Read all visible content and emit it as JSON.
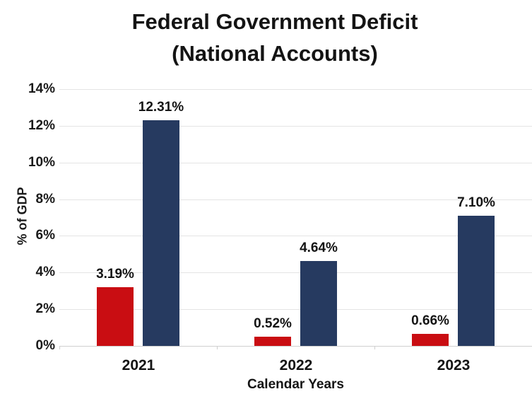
{
  "page": {
    "background": "#FFFFFF",
    "text_color": "#141414"
  },
  "chart_data": {
    "type": "bar",
    "title": "Federal Government Deficit",
    "subtitle": "(National Accounts)",
    "categories": [
      "2021",
      "2022",
      "2023"
    ],
    "series": [
      {
        "name": "red-series",
        "color": "#C90D12",
        "values": [
          3.19,
          0.52,
          0.66
        ],
        "data_labels": [
          "3.19%",
          "0.52%",
          "0.66%"
        ]
      },
      {
        "name": "navy-series",
        "color": "#263A60",
        "values": [
          12.31,
          4.64,
          7.1
        ],
        "data_labels": [
          "12.31%",
          "4.64%",
          "7.10%"
        ]
      }
    ],
    "xlabel": "Calendar Years",
    "ylabel": "% of GDP",
    "ylim": [
      0,
      14
    ],
    "yticks": [
      0,
      2,
      4,
      6,
      8,
      10,
      12,
      14
    ],
    "ytick_labels": [
      "0%",
      "2%",
      "4%",
      "6%",
      "8%",
      "10%",
      "12%",
      "14%"
    ],
    "grid": true,
    "grid_color": "#E4E4E4",
    "axis_line_color": "#CFCFCF",
    "legend_position": "none"
  }
}
